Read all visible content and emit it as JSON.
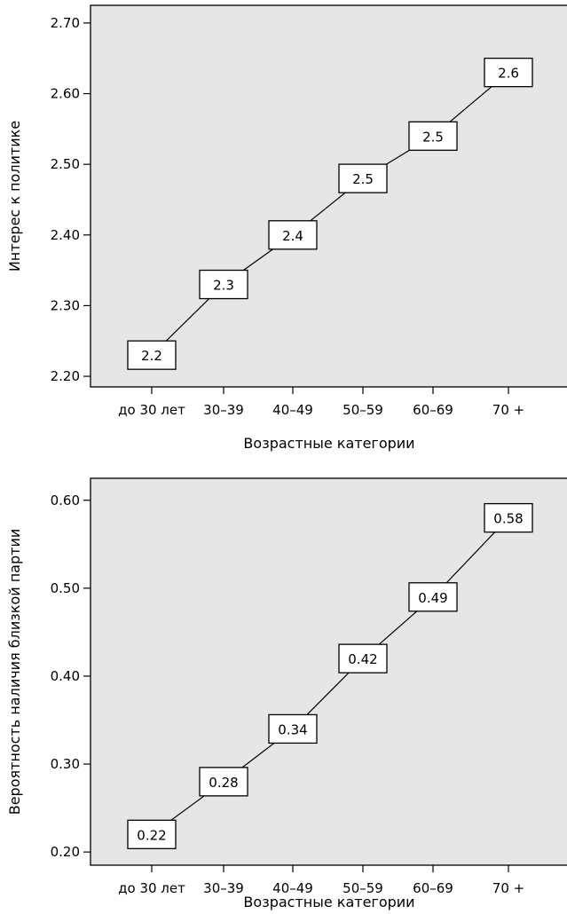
{
  "chart_data": [
    {
      "type": "line",
      "categories": [
        "до 30 лет",
        "30–39",
        "40–49",
        "50–59",
        "60–69",
        "70 +"
      ],
      "values": [
        2.23,
        2.33,
        2.4,
        2.48,
        2.54,
        2.63
      ],
      "data_labels": [
        "2.2",
        "2.3",
        "2.4",
        "2.5",
        "2.5",
        "2.6"
      ],
      "ylabel": "Интерес к политике",
      "xlabel": "Возрастные категории",
      "ylim": [
        2.185,
        2.725
      ],
      "yticks": [
        2.2,
        2.3,
        2.4,
        2.5,
        2.6,
        2.7
      ],
      "ytick_labels": [
        "2.20",
        "2.30",
        "2.40",
        "2.50",
        "2.60",
        "2.70"
      ],
      "grid": false,
      "legend": false,
      "background_color": "#e6e6e6"
    },
    {
      "type": "line",
      "categories": [
        "до 30 лет",
        "30–39",
        "40–49",
        "50–59",
        "60–69",
        "70 +"
      ],
      "values": [
        0.22,
        0.28,
        0.34,
        0.42,
        0.49,
        0.58
      ],
      "data_labels": [
        "0.22",
        "0.28",
        "0.34",
        "0.42",
        "0.49",
        "0.58"
      ],
      "ylabel": "Вероятность наличия близкой партии",
      "xlabel": "Возрастные категории",
      "ylim": [
        0.185,
        0.625
      ],
      "yticks": [
        0.2,
        0.3,
        0.4,
        0.5,
        0.6
      ],
      "ytick_labels": [
        "0.20",
        "0.30",
        "0.40",
        "0.50",
        "0.60"
      ],
      "grid": false,
      "legend": false,
      "background_color": "#e6e6e6"
    }
  ]
}
